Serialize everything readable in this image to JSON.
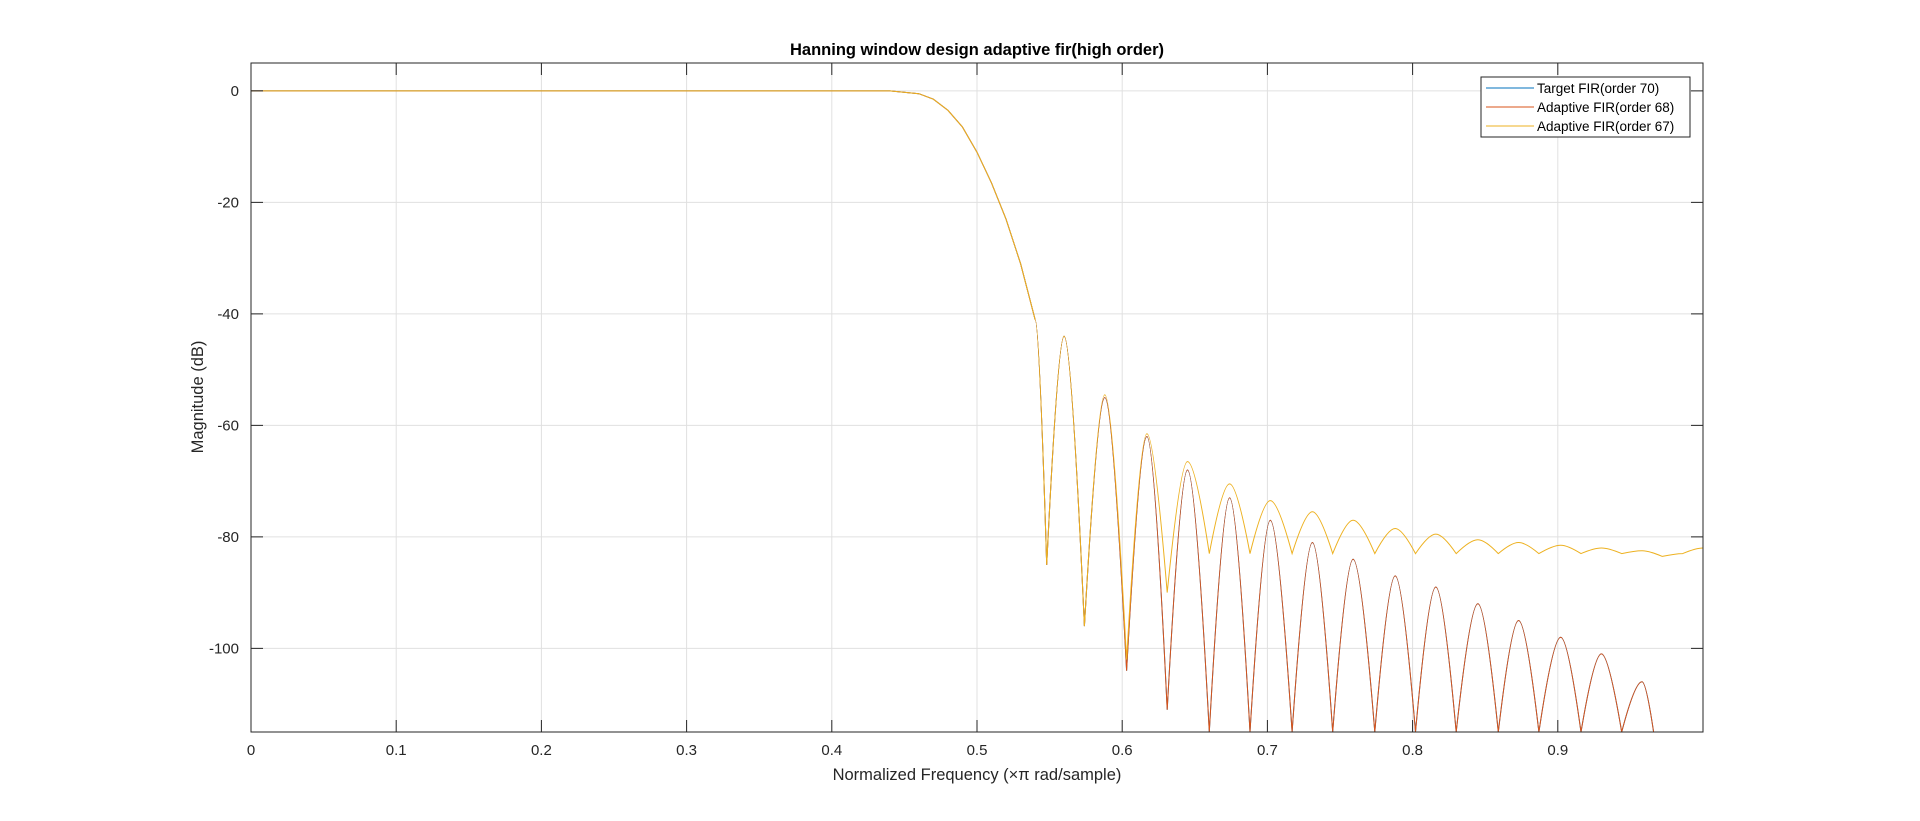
{
  "chart_data": {
    "type": "line",
    "title": "Hanning window design adaptive fir(high order)",
    "xlabel": "Normalized Frequency (×π rad/sample)",
    "ylabel": "Magnitude (dB)",
    "xlim": [
      0,
      1
    ],
    "ylim": [
      -115,
      5
    ],
    "xticks": [
      0,
      0.1,
      0.2,
      0.3,
      0.4,
      0.5,
      0.6,
      0.7,
      0.8,
      0.9
    ],
    "xtick_labels": [
      "0",
      "0.1",
      "0.2",
      "0.3",
      "0.4",
      "0.5",
      "0.6",
      "0.7",
      "0.8",
      "0.9"
    ],
    "yticks": [
      0,
      -20,
      -40,
      -60,
      -80,
      -100
    ],
    "ytick_labels": [
      "0",
      "-20",
      "-40",
      "-60",
      "-80",
      "-100"
    ],
    "grid": true,
    "legend_position": "top-right",
    "series": [
      {
        "name": "Target FIR(order 70)",
        "color": "#0072BD",
        "x": [
          0,
          0.1,
          0.2,
          0.3,
          0.4,
          0.44,
          0.46,
          0.47,
          0.48,
          0.49,
          0.5,
          0.51,
          0.52,
          0.53,
          0.54,
          0.548,
          0.56,
          0.574,
          0.588,
          0.603,
          0.617,
          0.631,
          0.645,
          0.66,
          0.674,
          0.688,
          0.702,
          0.717,
          0.731,
          0.745,
          0.759,
          0.774,
          0.788,
          0.802,
          0.816,
          0.83,
          0.845,
          0.859,
          0.873,
          0.887,
          0.902,
          0.916,
          0.93,
          0.944,
          0.958,
          0.966
        ],
        "y": [
          0,
          0,
          0,
          0,
          0,
          0,
          -0.5,
          -1.5,
          -3.5,
          -6.5,
          -11,
          -16.5,
          -23,
          -31,
          -41,
          -85,
          -44,
          -96,
          -55,
          -104,
          -62,
          -111,
          -68,
          -115,
          -73,
          -115,
          -77,
          -115,
          -81,
          -115,
          -84,
          -115,
          -87,
          -115,
          -89,
          -115,
          -92,
          -115,
          -95,
          -115,
          -98,
          -115,
          -101,
          -115,
          -106,
          -115
        ]
      },
      {
        "name": "Adaptive FIR(order 68)",
        "color": "#D95319",
        "x": [
          0,
          0.1,
          0.2,
          0.3,
          0.4,
          0.44,
          0.46,
          0.47,
          0.48,
          0.49,
          0.5,
          0.51,
          0.52,
          0.53,
          0.54,
          0.548,
          0.56,
          0.574,
          0.588,
          0.603,
          0.617,
          0.631,
          0.645,
          0.66,
          0.674,
          0.688,
          0.702,
          0.717,
          0.731,
          0.745,
          0.759,
          0.774,
          0.788,
          0.802,
          0.816,
          0.83,
          0.845,
          0.859,
          0.873,
          0.887,
          0.902,
          0.916,
          0.93,
          0.944,
          0.958,
          0.966
        ],
        "y": [
          0,
          0,
          0,
          0,
          0,
          0,
          -0.5,
          -1.5,
          -3.5,
          -6.5,
          -11,
          -16.5,
          -23,
          -31,
          -41,
          -85,
          -44,
          -96,
          -55,
          -104,
          -62,
          -111,
          -68,
          -115,
          -73,
          -115,
          -77,
          -115,
          -81,
          -115,
          -84,
          -115,
          -87,
          -115,
          -89,
          -115,
          -92,
          -115,
          -95,
          -115,
          -98,
          -115,
          -101,
          -115,
          -106,
          -115
        ]
      },
      {
        "name": "Adaptive FIR(order 67)",
        "color": "#EDB120",
        "x": [
          0,
          0.1,
          0.2,
          0.3,
          0.4,
          0.44,
          0.46,
          0.47,
          0.48,
          0.49,
          0.5,
          0.51,
          0.52,
          0.53,
          0.54,
          0.548,
          0.56,
          0.574,
          0.588,
          0.603,
          0.617,
          0.631,
          0.645,
          0.66,
          0.674,
          0.688,
          0.702,
          0.717,
          0.731,
          0.745,
          0.759,
          0.774,
          0.788,
          0.802,
          0.816,
          0.83,
          0.845,
          0.859,
          0.873,
          0.887,
          0.902,
          0.916,
          0.93,
          0.944,
          0.958,
          0.972,
          0.986,
          1.0
        ],
        "y": [
          0,
          0,
          0,
          0,
          0,
          0,
          -0.5,
          -1.5,
          -3.5,
          -6.5,
          -11,
          -16.5,
          -23,
          -31,
          -41,
          -85,
          -44,
          -96,
          -54.5,
          -102,
          -61.5,
          -90,
          -66.5,
          -83,
          -70.5,
          -83,
          -73.5,
          -83,
          -75.5,
          -83,
          -77,
          -83,
          -78.5,
          -83,
          -79.5,
          -83,
          -80.5,
          -83,
          -81,
          -83,
          -81.5,
          -83,
          -82,
          -83,
          -82.5,
          -83.5,
          -83,
          -82
        ]
      }
    ]
  }
}
